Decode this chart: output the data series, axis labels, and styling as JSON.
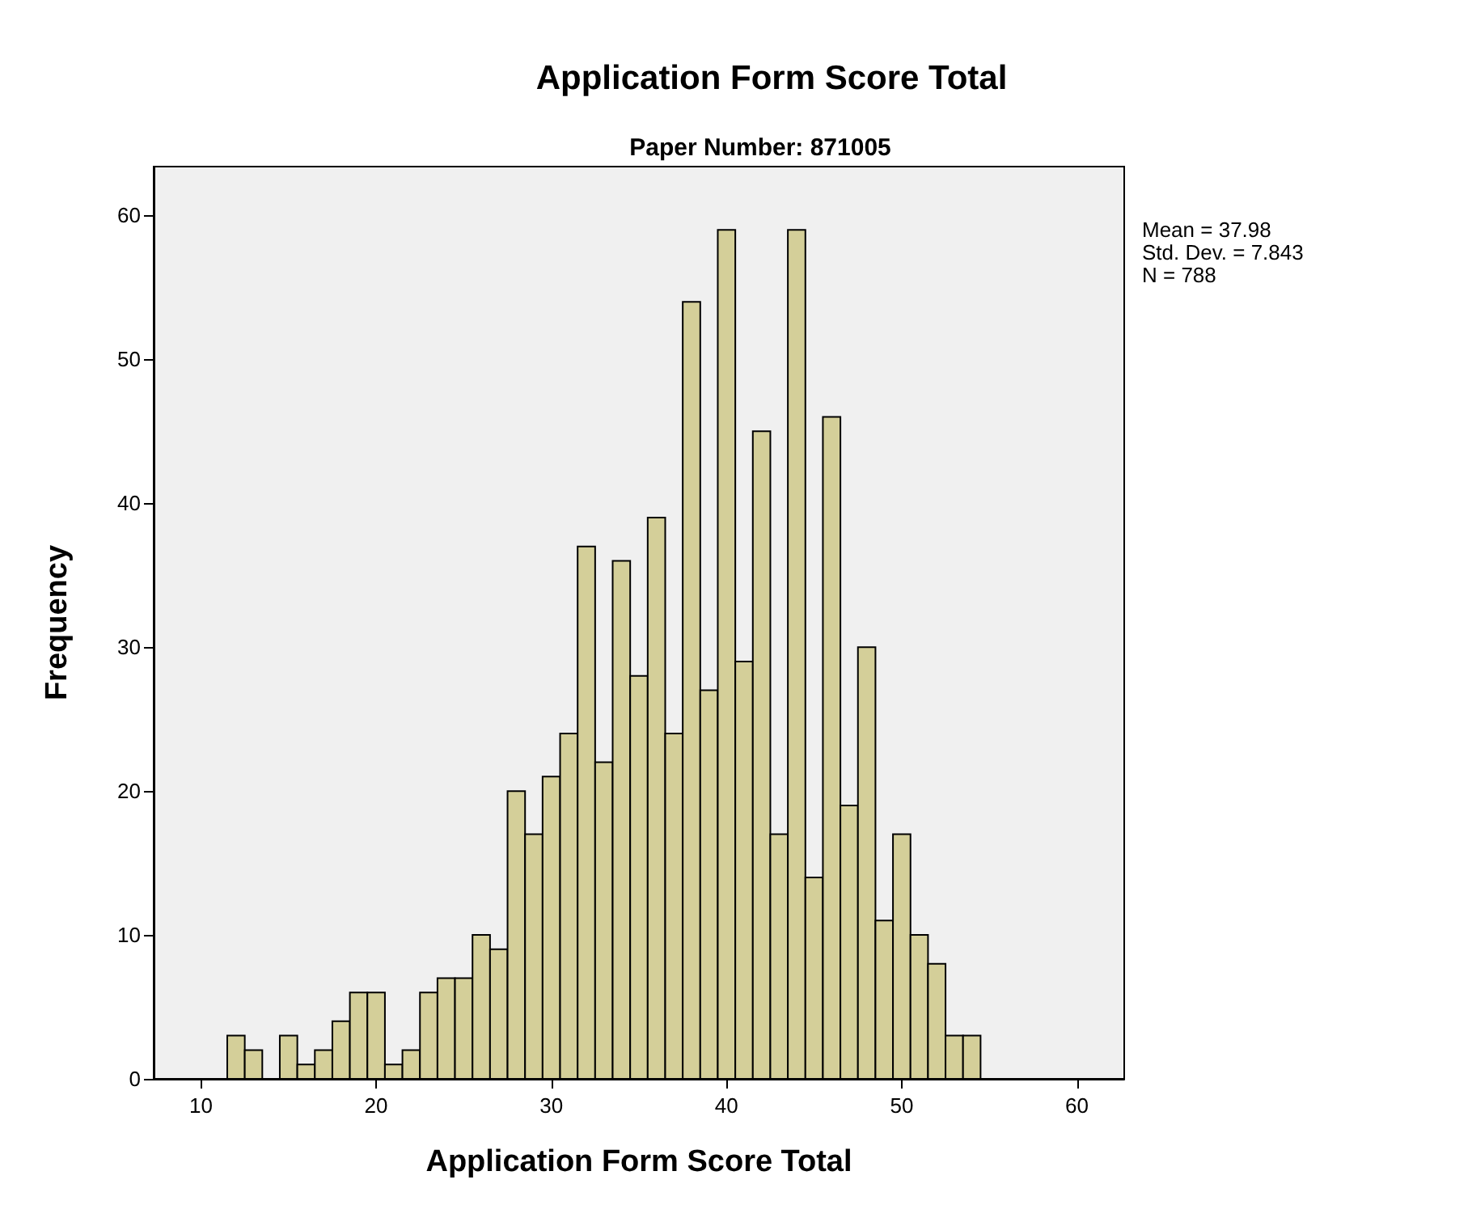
{
  "chart_data": {
    "type": "histogram",
    "title": "Application Form Score Total",
    "subtitle": "Paper Number: 871005",
    "xlabel": "Application Form Score Total",
    "ylabel": "Frequency",
    "bins": [
      11.5,
      12.5,
      13.5,
      14.5,
      15.5,
      16.5,
      17.5,
      18.5,
      19.5,
      20.5,
      21.5,
      22.5,
      23.5,
      24.5,
      25.5,
      26.5,
      27.5,
      28.5,
      29.5,
      30.5,
      31.5,
      32.5,
      33.5,
      34.5,
      35.5,
      36.5,
      37.5,
      38.5,
      39.5,
      40.5,
      41.5,
      42.5,
      43.5,
      44.5,
      45.5,
      46.5,
      47.5,
      48.5,
      49.5,
      50.5,
      51.5,
      52.5,
      53.5,
      54.5
    ],
    "values": [
      3,
      2,
      0,
      3,
      1,
      2,
      4,
      6,
      6,
      1,
      2,
      6,
      7,
      7,
      10,
      9,
      20,
      17,
      21,
      24,
      37,
      22,
      36,
      28,
      39,
      24,
      54,
      27,
      59,
      29,
      45,
      17,
      59,
      14,
      46,
      19,
      30,
      11,
      17,
      10,
      8,
      3,
      3
    ],
    "color": "#d4cf99",
    "xlim": [
      7.3,
      62.7
    ],
    "xticks": [
      10,
      20,
      30,
      40,
      50,
      60
    ],
    "ylim": [
      0,
      63.4
    ],
    "yticks": [
      0,
      10,
      20,
      30,
      40,
      50,
      60
    ],
    "grid": false,
    "annotations": [
      "Mean = 37.98",
      "Std. Dev. = 7.843",
      "N = 788"
    ]
  }
}
